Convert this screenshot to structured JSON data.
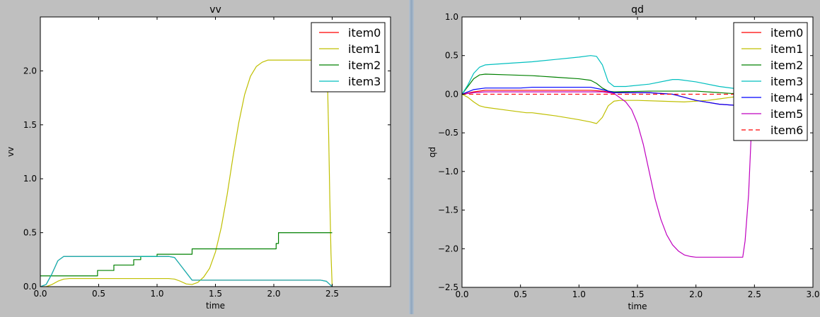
{
  "colors": {
    "figure_bg": "#bfbfbf",
    "axes_bg": "#ffffff",
    "splitter": "#8fa6bf"
  },
  "chart_data": [
    {
      "type": "line",
      "title": "vv",
      "xlabel": "time",
      "ylabel": "vv",
      "xlim": [
        0,
        3.0
      ],
      "ylim": [
        0,
        2.5
      ],
      "xticks": [
        0.0,
        0.5,
        1.0,
        1.5,
        2.0,
        2.5
      ],
      "xtick_labels": [
        "0.0",
        "0.5",
        "1.0",
        "1.5",
        "2.0",
        "2.5"
      ],
      "yticks": [
        0.0,
        0.5,
        1.0,
        1.5,
        2.0
      ],
      "ytick_labels": [
        "0.0",
        "0.5",
        "1.0",
        "1.5",
        "2.0"
      ],
      "grid": false,
      "legend_position": "top-right",
      "series": [
        {
          "name": "item0",
          "color": "#ff0000",
          "style": "solid",
          "x": [
            0,
            0.05,
            0.1,
            0.15,
            0.2,
            0.25,
            1.0,
            1.1,
            1.15,
            1.2,
            1.3,
            2.4,
            2.45,
            2.48,
            2.5
          ],
          "y": [
            0,
            0.02,
            0.12,
            0.24,
            0.28,
            0.28,
            0.28,
            0.28,
            0.27,
            0.2,
            0.06,
            0.06,
            0.05,
            0.02,
            0.0
          ]
        },
        {
          "name": "item1",
          "color": "#bfbf00",
          "style": "solid",
          "x": [
            0,
            0.05,
            0.1,
            0.15,
            0.2,
            0.25,
            0.3,
            1.1,
            1.15,
            1.2,
            1.25,
            1.3,
            1.35,
            1.4,
            1.45,
            1.5,
            1.55,
            1.6,
            1.65,
            1.7,
            1.75,
            1.8,
            1.85,
            1.9,
            1.95,
            2.0,
            2.05,
            2.45,
            2.46,
            2.47,
            2.48,
            2.49,
            2.5
          ],
          "y": [
            0,
            0.0,
            0.02,
            0.05,
            0.07,
            0.075,
            0.075,
            0.075,
            0.07,
            0.05,
            0.025,
            0.02,
            0.04,
            0.09,
            0.17,
            0.32,
            0.55,
            0.85,
            1.2,
            1.52,
            1.78,
            1.95,
            2.04,
            2.08,
            2.1,
            2.1,
            2.1,
            2.1,
            1.9,
            1.4,
            0.8,
            0.3,
            0.0
          ]
        },
        {
          "name": "item2",
          "color": "#008000",
          "style": "step",
          "x": [
            0,
            0.49,
            0.49,
            0.63,
            0.63,
            0.8,
            0.8,
            0.86,
            0.86,
            1.0,
            1.0,
            1.06,
            1.06,
            1.3,
            1.3,
            2.02,
            2.02,
            2.04,
            2.04,
            2.5
          ],
          "y": [
            0.1,
            0.1,
            0.15,
            0.15,
            0.2,
            0.2,
            0.25,
            0.25,
            0.28,
            0.28,
            0.3,
            0.3,
            0.3,
            0.3,
            0.35,
            0.35,
            0.4,
            0.4,
            0.5,
            0.5
          ]
        },
        {
          "name": "item3",
          "color": "#00bfbf",
          "style": "solid",
          "x": [
            0,
            0.05,
            0.1,
            0.15,
            0.2,
            0.25,
            1.0,
            1.1,
            1.15,
            1.2,
            1.3,
            2.4,
            2.45,
            2.48,
            2.5
          ],
          "y": [
            0,
            0.02,
            0.12,
            0.24,
            0.28,
            0.28,
            0.28,
            0.28,
            0.27,
            0.2,
            0.06,
            0.06,
            0.05,
            0.02,
            0.0
          ]
        }
      ]
    },
    {
      "type": "line",
      "title": "qd",
      "xlabel": "time",
      "ylabel": "qd",
      "xlim": [
        0,
        3.0
      ],
      "ylim": [
        -2.5,
        1.0
      ],
      "xticks": [
        0.0,
        0.5,
        1.0,
        1.5,
        2.0,
        2.5,
        3.0
      ],
      "xtick_labels": [
        "0.0",
        "0.5",
        "1.0",
        "1.5",
        "2.0",
        "2.5",
        "3.0"
      ],
      "yticks": [
        -2.5,
        -2.0,
        -1.5,
        -1.0,
        -0.5,
        0.0,
        0.5,
        1.0
      ],
      "ytick_labels": [
        "−2.5",
        "−2.0",
        "−1.5",
        "−1.0",
        "−0.5",
        "0.0",
        "0.5",
        "1.0"
      ],
      "grid": false,
      "legend_position": "top-right",
      "series": [
        {
          "name": "item0",
          "color": "#ff0000",
          "style": "solid",
          "x": [
            0,
            0.1,
            0.2,
            0.5,
            0.8,
            1.1,
            1.2,
            1.3,
            1.6,
            1.8,
            2.0,
            2.2,
            2.4,
            2.5
          ],
          "y": [
            0,
            0.03,
            0.05,
            0.05,
            0.05,
            0.05,
            0.04,
            0.02,
            0.02,
            0.0,
            -0.08,
            -0.13,
            -0.15,
            -0.15
          ]
        },
        {
          "name": "item1",
          "color": "#bfbf00",
          "style": "solid",
          "x": [
            0,
            0.05,
            0.1,
            0.15,
            0.2,
            0.4,
            0.55,
            0.6,
            0.8,
            1.0,
            1.1,
            1.15,
            1.2,
            1.25,
            1.3,
            1.35,
            1.5,
            1.7,
            1.9,
            2.1,
            2.3,
            2.5
          ],
          "y": [
            0,
            -0.04,
            -0.1,
            -0.15,
            -0.17,
            -0.21,
            -0.24,
            -0.24,
            -0.28,
            -0.33,
            -0.36,
            -0.38,
            -0.3,
            -0.15,
            -0.09,
            -0.08,
            -0.08,
            -0.09,
            -0.1,
            -0.08,
            -0.04,
            0.0
          ]
        },
        {
          "name": "item2",
          "color": "#008000",
          "style": "solid",
          "x": [
            0,
            0.05,
            0.1,
            0.15,
            0.2,
            0.4,
            0.6,
            0.8,
            1.0,
            1.1,
            1.15,
            1.2,
            1.25,
            1.3,
            1.6,
            2.0,
            2.3,
            2.5
          ],
          "y": [
            0,
            0.1,
            0.2,
            0.25,
            0.26,
            0.25,
            0.24,
            0.22,
            0.2,
            0.18,
            0.14,
            0.08,
            0.04,
            0.03,
            0.04,
            0.04,
            0.01,
            0.0
          ]
        },
        {
          "name": "item3",
          "color": "#00bfbf",
          "style": "solid",
          "x": [
            0,
            0.05,
            0.1,
            0.15,
            0.2,
            0.4,
            0.6,
            0.8,
            1.0,
            1.1,
            1.15,
            1.2,
            1.25,
            1.3,
            1.35,
            1.4,
            1.6,
            1.8,
            1.85,
            2.0,
            2.2,
            2.4,
            2.5
          ],
          "y": [
            0,
            0.12,
            0.27,
            0.35,
            0.38,
            0.4,
            0.42,
            0.45,
            0.48,
            0.5,
            0.49,
            0.38,
            0.16,
            0.1,
            0.1,
            0.1,
            0.13,
            0.19,
            0.19,
            0.16,
            0.1,
            0.06,
            0.05
          ]
        },
        {
          "name": "item4",
          "color": "#0000ff",
          "style": "solid",
          "x": [
            0,
            0.1,
            0.2,
            0.5,
            0.6,
            0.8,
            1.1,
            1.2,
            1.3,
            1.6,
            1.8,
            2.0,
            2.2,
            2.4,
            2.5
          ],
          "y": [
            0,
            0.06,
            0.08,
            0.08,
            0.09,
            0.09,
            0.09,
            0.06,
            0.02,
            0.02,
            0.0,
            -0.08,
            -0.13,
            -0.15,
            -0.15
          ]
        },
        {
          "name": "item5",
          "color": "#bf00bf",
          "style": "solid",
          "x": [
            0,
            0.1,
            0.2,
            0.5,
            1.0,
            1.2,
            1.3,
            1.4,
            1.45,
            1.5,
            1.55,
            1.6,
            1.65,
            1.7,
            1.75,
            1.8,
            1.85,
            1.9,
            1.95,
            2.0,
            2.2,
            2.4,
            2.42,
            2.45,
            2.47,
            2.5
          ],
          "y": [
            0,
            0.02,
            0.03,
            0.03,
            0.03,
            0.03,
            0.01,
            -0.1,
            -0.2,
            -0.38,
            -0.65,
            -1.0,
            -1.35,
            -1.62,
            -1.82,
            -1.95,
            -2.03,
            -2.08,
            -2.1,
            -2.11,
            -2.11,
            -2.11,
            -1.9,
            -1.3,
            -0.6,
            -0.1
          ]
        },
        {
          "name": "item6",
          "color": "#ff0000",
          "style": "dashed",
          "x": [
            0,
            2.5
          ],
          "y": [
            0,
            0
          ]
        }
      ]
    }
  ]
}
